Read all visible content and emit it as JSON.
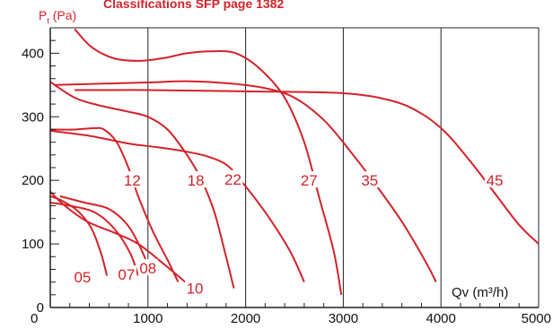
{
  "header": {
    "caption": "Classifications SFP page 1382"
  },
  "chart_data": {
    "type": "line",
    "title": "",
    "xlabel": "Qv (m³/h)",
    "ylabel": "Pt (Pa)",
    "xlim": [
      0,
      5000
    ],
    "ylim": [
      0,
      440
    ],
    "x_ticks": [
      0,
      1000,
      2000,
      3000,
      4000,
      5000
    ],
    "y_ticks": [
      0,
      100,
      200,
      300,
      400
    ],
    "y_minor_step": 20,
    "grid": "vertical-major",
    "color": "#d2232a",
    "series": [
      {
        "name": "05",
        "label_at": [
          330,
          48
        ],
        "points": [
          [
            0,
            175
          ],
          [
            120,
            168
          ],
          [
            280,
            152
          ],
          [
            420,
            125
          ],
          [
            520,
            85
          ],
          [
            580,
            50
          ]
        ]
      },
      {
        "name": "07",
        "label_at": [
          780,
          52
        ],
        "points": [
          [
            0,
            165
          ],
          [
            200,
            160
          ],
          [
            450,
            150
          ],
          [
            650,
            125
          ],
          [
            820,
            85
          ],
          [
            900,
            50
          ]
        ]
      },
      {
        "name": "08",
        "label_at": [
          1000,
          62
        ],
        "points": [
          [
            100,
            175
          ],
          [
            350,
            165
          ],
          [
            600,
            155
          ],
          [
            800,
            128
          ],
          [
            950,
            85
          ],
          [
            1020,
            55
          ]
        ]
      },
      {
        "name": "10",
        "label_at": [
          1480,
          30
        ],
        "points": [
          [
            0,
            182
          ],
          [
            150,
            160
          ],
          [
            380,
            135
          ],
          [
            650,
            118
          ],
          [
            900,
            100
          ],
          [
            1150,
            70
          ],
          [
            1420,
            35
          ]
        ]
      },
      {
        "name": "12",
        "label_at": [
          840,
          200
        ],
        "points": [
          [
            0,
            280
          ],
          [
            250,
            280
          ],
          [
            450,
            282
          ],
          [
            550,
            280
          ],
          [
            680,
            260
          ],
          [
            800,
            220
          ],
          [
            900,
            175
          ],
          [
            1050,
            120
          ],
          [
            1200,
            75
          ],
          [
            1310,
            40
          ]
        ]
      },
      {
        "name": "18",
        "label_at": [
          1490,
          200
        ],
        "points": [
          [
            0,
            355
          ],
          [
            250,
            330
          ],
          [
            500,
            318
          ],
          [
            800,
            308
          ],
          [
            1000,
            300
          ],
          [
            1200,
            280
          ],
          [
            1400,
            240
          ],
          [
            1550,
            200
          ],
          [
            1680,
            150
          ],
          [
            1800,
            80
          ],
          [
            1880,
            30
          ]
        ]
      },
      {
        "name": "22",
        "label_at": [
          1870,
          202
        ],
        "points": [
          [
            0,
            278
          ],
          [
            400,
            270
          ],
          [
            800,
            258
          ],
          [
            1100,
            252
          ],
          [
            1400,
            245
          ],
          [
            1600,
            238
          ],
          [
            1800,
            225
          ],
          [
            1950,
            200
          ],
          [
            2200,
            150
          ],
          [
            2450,
            90
          ],
          [
            2600,
            40
          ]
        ]
      },
      {
        "name": "27",
        "label_at": [
          2650,
          200
        ],
        "points": [
          [
            250,
            438
          ],
          [
            420,
            410
          ],
          [
            650,
            392
          ],
          [
            900,
            388
          ],
          [
            1150,
            392
          ],
          [
            1400,
            400
          ],
          [
            1650,
            403
          ],
          [
            1900,
            400
          ],
          [
            2150,
            375
          ],
          [
            2400,
            330
          ],
          [
            2600,
            260
          ],
          [
            2750,
            175
          ],
          [
            2900,
            90
          ],
          [
            2980,
            20
          ]
        ]
      },
      {
        "name": "35",
        "label_at": [
          3270,
          200
        ],
        "points": [
          [
            50,
            350
          ],
          [
            500,
            352
          ],
          [
            1000,
            354
          ],
          [
            1400,
            356
          ],
          [
            1800,
            353
          ],
          [
            2200,
            345
          ],
          [
            2500,
            330
          ],
          [
            2800,
            295
          ],
          [
            3050,
            250
          ],
          [
            3300,
            200
          ],
          [
            3600,
            135
          ],
          [
            3850,
            70
          ],
          [
            3950,
            40
          ]
        ]
      },
      {
        "name": "45",
        "label_at": [
          4550,
          200
        ],
        "points": [
          [
            250,
            342
          ],
          [
            1000,
            342
          ],
          [
            2000,
            340
          ],
          [
            3000,
            337
          ],
          [
            3500,
            325
          ],
          [
            3800,
            305
          ],
          [
            4050,
            275
          ],
          [
            4300,
            230
          ],
          [
            4550,
            180
          ],
          [
            4800,
            130
          ],
          [
            5000,
            100
          ]
        ]
      }
    ]
  }
}
